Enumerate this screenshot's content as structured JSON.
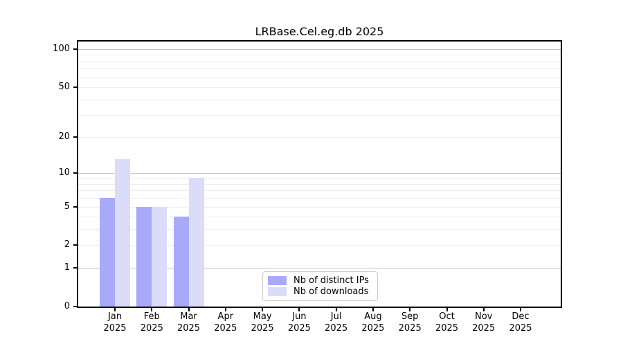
{
  "title": "LRBase.Cel.eg.db 2025",
  "chart_data": {
    "type": "bar",
    "title": "LRBase.Cel.eg.db 2025",
    "categories": [
      "Jan",
      "Feb",
      "Mar",
      "Apr",
      "May",
      "Jun",
      "Jul",
      "Aug",
      "Sep",
      "Oct",
      "Nov",
      "Dec"
    ],
    "year": "2025",
    "series": [
      {
        "name": "Nb of distinct IPs",
        "color": "#a9a9fa",
        "values": [
          6,
          5,
          4,
          0,
          0,
          0,
          0,
          0,
          0,
          0,
          0,
          0
        ]
      },
      {
        "name": "Nb of downloads",
        "color": "#dbdbfa",
        "values": [
          13,
          5,
          9,
          0,
          0,
          0,
          0,
          0,
          0,
          0,
          0,
          0
        ]
      }
    ],
    "xlabel": "",
    "ylabel": "",
    "y_axis": {
      "scale": "log1p",
      "tick_values": [
        0,
        1,
        2,
        5,
        10,
        20,
        50,
        100
      ],
      "tick_labels": [
        "0",
        "1",
        "2",
        "5",
        "10",
        "20",
        "50",
        "100"
      ],
      "major_gridlines": [
        1,
        10,
        100
      ],
      "minor_gridlines": [
        2,
        3,
        4,
        5,
        6,
        7,
        8,
        9,
        20,
        30,
        40,
        50,
        60,
        70,
        80,
        90
      ],
      "ylim": [
        0,
        115
      ]
    },
    "legend": {
      "position": "lower center",
      "entries": [
        "Nb of distinct IPs",
        "Nb of downloads"
      ]
    },
    "colors": {
      "major_grid": "#c6c6c6",
      "minor_grid": "#ededed",
      "axis": "#000000",
      "background": "#ffffff"
    },
    "grid": true
  }
}
